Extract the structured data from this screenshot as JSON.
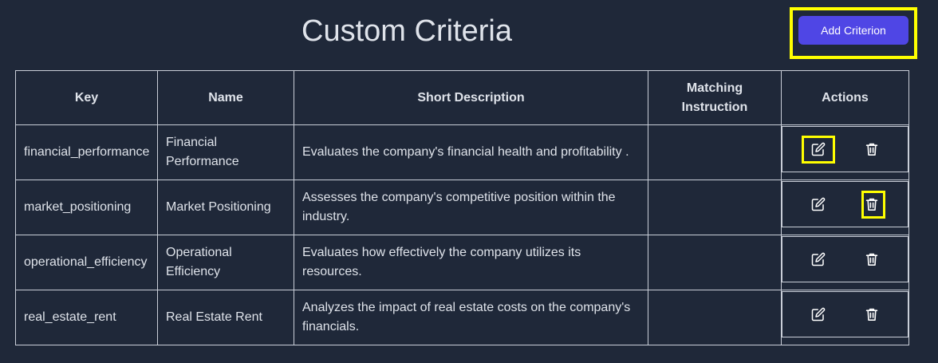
{
  "page": {
    "title": "Custom Criteria"
  },
  "toolbar": {
    "add_label": "Add Criterion"
  },
  "table": {
    "headers": {
      "key": "Key",
      "name": "Name",
      "description": "Short Description",
      "matching": "Matching Instruction",
      "actions": "Actions"
    },
    "rows": [
      {
        "key": "financial_performance",
        "name": "Financial Performance",
        "description": "Evaluates the company's financial health and profitability .",
        "matching": ""
      },
      {
        "key": "market_positioning",
        "name": "Market Positioning",
        "description": "Assesses the company's competitive position within the industry.",
        "matching": ""
      },
      {
        "key": "operational_efficiency",
        "name": "Operational Efficiency",
        "description": "Evaluates how effectively the company utilizes its resources.",
        "matching": ""
      },
      {
        "key": "real_estate_rent",
        "name": "Real Estate Rent",
        "description": "Analyzes the impact of real estate costs on the company's financials.",
        "matching": ""
      }
    ]
  },
  "icons": {
    "edit": "edit-icon",
    "delete": "trash-icon"
  },
  "colors": {
    "background": "#1f2839",
    "accent": "#4f46e5",
    "highlight": "#ffff00"
  }
}
